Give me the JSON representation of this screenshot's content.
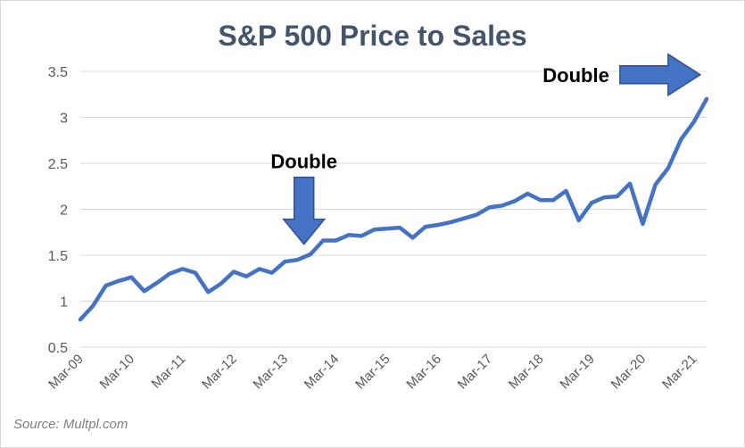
{
  "title": "S&P 500 Price to Sales",
  "source": "Source: Multpl.com",
  "colors": {
    "line": "#4472c4",
    "arrow_fill": "#4472c4",
    "arrow_stroke": "#2f528f",
    "title": "#44546a",
    "gridline": "#d9d9d9",
    "tick_text": "#595959"
  },
  "chart_data": {
    "type": "line",
    "title": "S&P 500 Price to Sales",
    "xlabel": "",
    "ylabel": "",
    "ylim": [
      0.5,
      3.5
    ],
    "yticks": [
      0.5,
      1,
      1.5,
      2,
      2.5,
      3,
      3.5
    ],
    "ytick_labels": [
      "0.5",
      "1",
      "1.5",
      "2",
      "2.5",
      "3",
      "3.5"
    ],
    "xlim": [
      0,
      49
    ],
    "xticks": [
      {
        "pos": 0,
        "label": "Mar-09"
      },
      {
        "pos": 4,
        "label": "Mar-10"
      },
      {
        "pos": 8,
        "label": "Mar-11"
      },
      {
        "pos": 12,
        "label": "Mar-12"
      },
      {
        "pos": 16,
        "label": "Mar-13"
      },
      {
        "pos": 20,
        "label": "Mar-14"
      },
      {
        "pos": 24,
        "label": "Mar-15"
      },
      {
        "pos": 28,
        "label": "Mar-16"
      },
      {
        "pos": 32,
        "label": "Mar-17"
      },
      {
        "pos": 36,
        "label": "Mar-18"
      },
      {
        "pos": 40,
        "label": "Mar-19"
      },
      {
        "pos": 44,
        "label": "Mar-20"
      },
      {
        "pos": 48,
        "label": "Mar-21"
      }
    ],
    "grid": {
      "horizontal": true,
      "vertical": false
    },
    "legend": "none",
    "series": [
      {
        "values": [
          0.8,
          0.95,
          1.17,
          1.22,
          1.26,
          1.11,
          1.2,
          1.3,
          1.35,
          1.31,
          1.1,
          1.19,
          1.32,
          1.27,
          1.35,
          1.31,
          1.43,
          1.45,
          1.51,
          1.66,
          1.66,
          1.72,
          1.71,
          1.78,
          1.79,
          1.8,
          1.69,
          1.81,
          1.83,
          1.86,
          1.9,
          1.94,
          2.02,
          2.04,
          2.09,
          2.17,
          2.1,
          2.1,
          2.2,
          1.88,
          2.07,
          2.13,
          2.14,
          2.28,
          1.84,
          2.27,
          2.45,
          2.76,
          2.95,
          3.2
        ]
      }
    ],
    "annotations": [
      {
        "text": "Double",
        "arrow": "down",
        "at_x": 17.5,
        "at_y": 1.62
      },
      {
        "text": "Double",
        "arrow": "right",
        "at_x": 48.5,
        "at_y": 3.25
      }
    ]
  }
}
